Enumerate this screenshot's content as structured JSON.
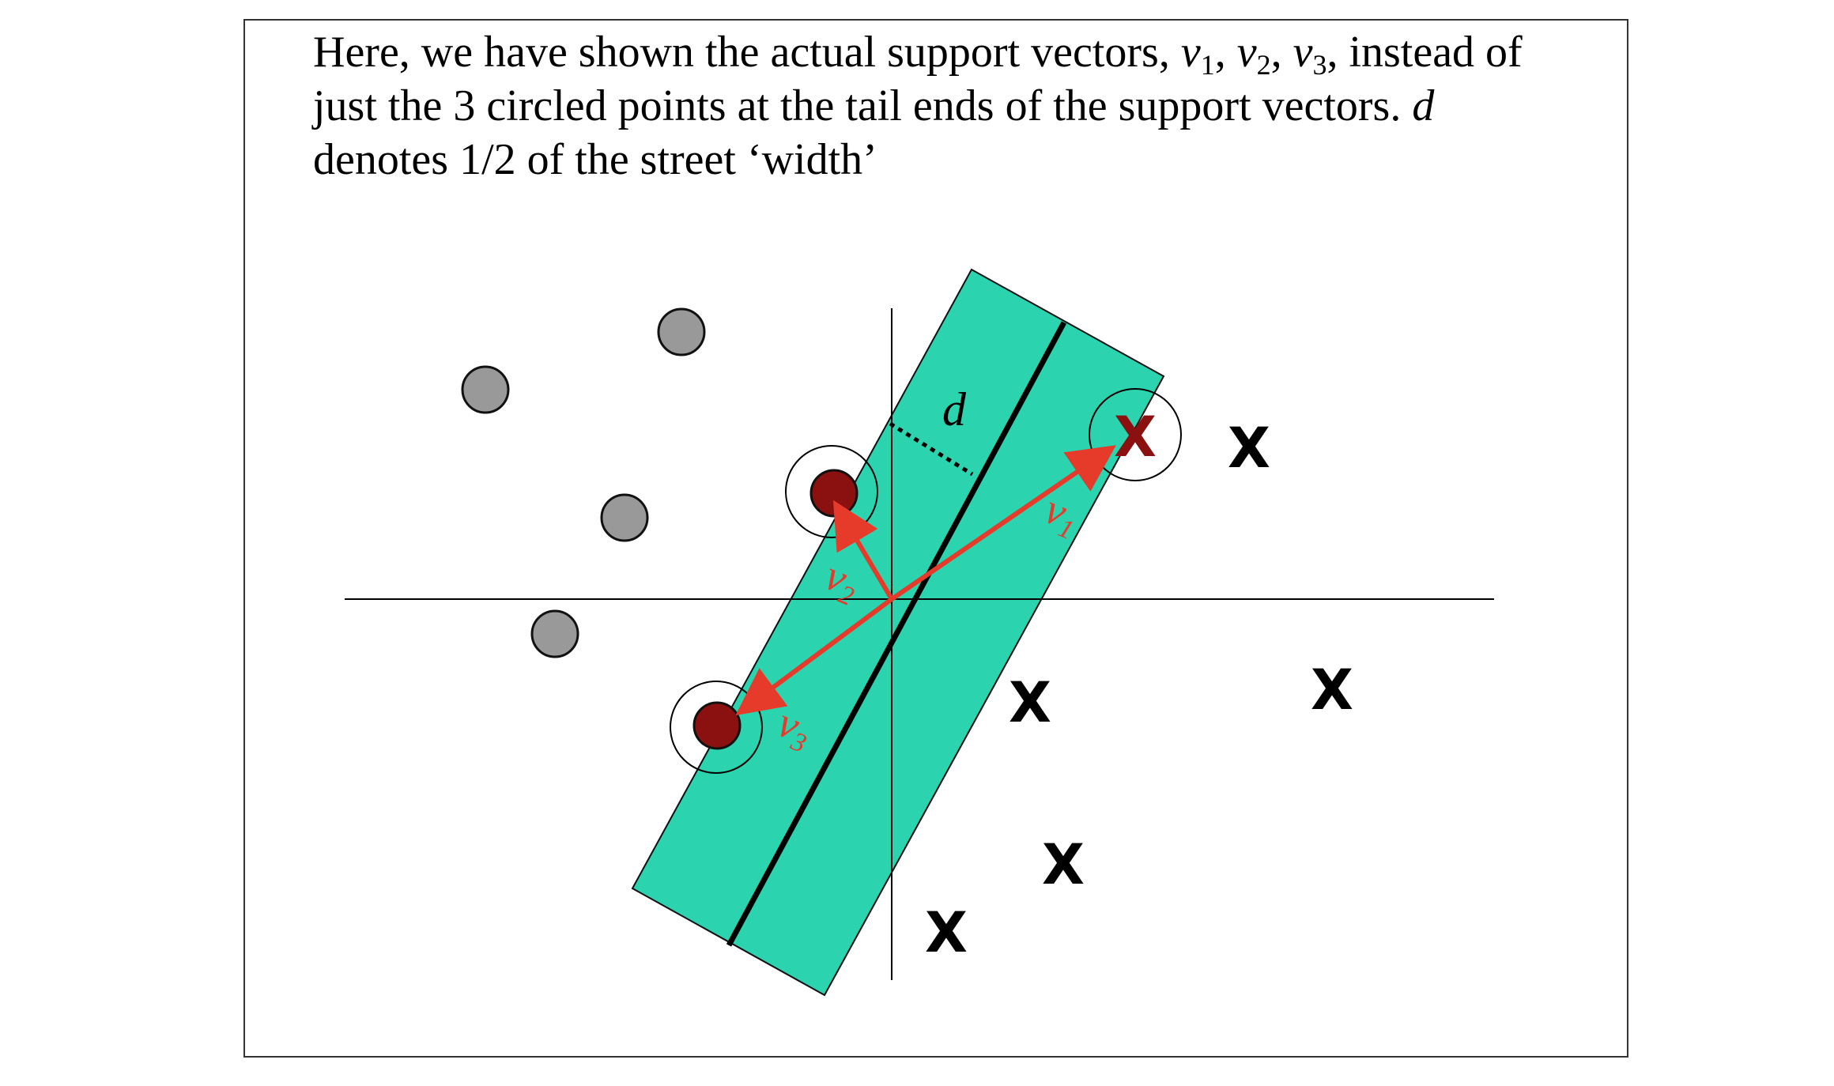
{
  "caption": {
    "line1_prefix": "Here, we have shown the actual support vectors, ",
    "v": "v",
    "sub1": "1",
    "sub2": "2",
    "sub3": "3",
    "sep": ", ",
    "line1_suffix": ",  instead of",
    "line2": "just the 3 circled points at the tail ends of the support vectors. ",
    "d": "d",
    "line3": "denotes 1/2 of the street ‘width’"
  },
  "diagram": {
    "half_width_label": "d",
    "negative_marker": "X",
    "vector_labels": [
      {
        "name": "v",
        "sub": "1"
      },
      {
        "name": "v",
        "sub": "2"
      },
      {
        "name": "v",
        "sub": "3"
      }
    ],
    "colors": {
      "street": "#2bd3ae",
      "vector": "#e63a2a",
      "support_point": "#8b1010",
      "other_point": "#999999",
      "axis": "#000000"
    }
  }
}
